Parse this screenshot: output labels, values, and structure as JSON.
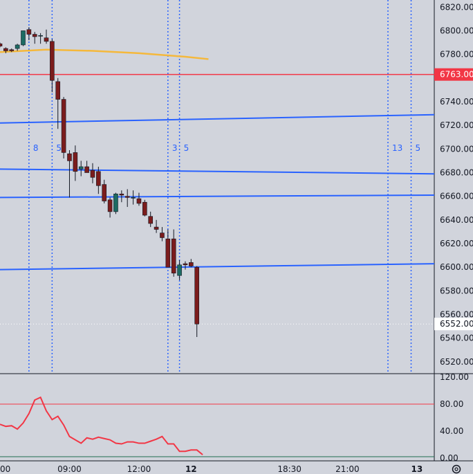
{
  "chart_data": {
    "type": "candlestick",
    "price_axis": {
      "ylim": [
        6510,
        6826
      ],
      "ticks": [
        6820,
        6800,
        6780,
        6740,
        6720,
        6700,
        6680,
        6660,
        6640,
        6620,
        6600,
        6580,
        6560,
        6540,
        6520
      ],
      "tick_labels": [
        "6820.00",
        "6800.00",
        "6780.00",
        "6740.00",
        "6720.00",
        "6700.00",
        "6680.00",
        "6660.00",
        "6640.00",
        "6620.00",
        "6600.00",
        "6580.00",
        "6560.00",
        "6540.00",
        "6520.00"
      ]
    },
    "time_axis": {
      "range": [
        6.0,
        24.75
      ],
      "ticks": [
        {
          "t": 6.0,
          "label": "00"
        },
        {
          "t": 9.0,
          "label": "09:00"
        },
        {
          "t": 12.0,
          "label": "12:00"
        },
        {
          "t": 14.25,
          "label": "12"
        },
        {
          "t": 18.5,
          "label": "18:30"
        },
        {
          "t": 21.0,
          "label": "21:00"
        },
        {
          "t": 24.0,
          "label": "13"
        }
      ]
    },
    "candles": [
      {
        "t": 6.0,
        "o": 6789,
        "h": 6790,
        "l": 6786,
        "c": 6787
      },
      {
        "t": 6.25,
        "o": 6785,
        "h": 6786,
        "l": 6781,
        "c": 6783
      },
      {
        "t": 6.5,
        "o": 6784,
        "h": 6785,
        "l": 6782,
        "c": 6783
      },
      {
        "t": 6.75,
        "o": 6785,
        "h": 6789,
        "l": 6783,
        "c": 6788
      },
      {
        "t": 7.0,
        "o": 6788,
        "h": 6800,
        "l": 6787,
        "c": 6800
      },
      {
        "t": 7.25,
        "o": 6801,
        "h": 6803,
        "l": 6792,
        "c": 6797
      },
      {
        "t": 7.5,
        "o": 6797,
        "h": 6799,
        "l": 6789,
        "c": 6795
      },
      {
        "t": 7.75,
        "o": 6796,
        "h": 6798,
        "l": 6789,
        "c": 6796
      },
      {
        "t": 8.0,
        "o": 6794,
        "h": 6801,
        "l": 6789,
        "c": 6791
      },
      {
        "t": 8.25,
        "o": 6791,
        "h": 6793,
        "l": 6748,
        "c": 6758
      },
      {
        "t": 8.5,
        "o": 6757,
        "h": 6760,
        "l": 6717,
        "c": 6742
      },
      {
        "t": 8.75,
        "o": 6742,
        "h": 6744,
        "l": 6692,
        "c": 6697
      },
      {
        "t": 9.0,
        "o": 6696,
        "h": 6699,
        "l": 6659,
        "c": 6690
      },
      {
        "t": 9.25,
        "o": 6697,
        "h": 6703,
        "l": 6673,
        "c": 6681
      },
      {
        "t": 9.5,
        "o": 6683,
        "h": 6690,
        "l": 6677,
        "c": 6685
      },
      {
        "t": 9.75,
        "o": 6685,
        "h": 6690,
        "l": 6680,
        "c": 6680
      },
      {
        "t": 10.0,
        "o": 6682,
        "h": 6688,
        "l": 6671,
        "c": 6676
      },
      {
        "t": 10.25,
        "o": 6681,
        "h": 6685,
        "l": 6662,
        "c": 6669
      },
      {
        "t": 10.5,
        "o": 6670,
        "h": 6674,
        "l": 6654,
        "c": 6656
      },
      {
        "t": 10.75,
        "o": 6657,
        "h": 6659,
        "l": 6642,
        "c": 6647
      },
      {
        "t": 11.0,
        "o": 6647,
        "h": 6663,
        "l": 6645,
        "c": 6662
      },
      {
        "t": 11.25,
        "o": 6662,
        "h": 6665,
        "l": 6655,
        "c": 6661
      },
      {
        "t": 11.5,
        "o": 6660,
        "h": 6666,
        "l": 6651,
        "c": 6659
      },
      {
        "t": 11.75,
        "o": 6659,
        "h": 6665,
        "l": 6653,
        "c": 6659
      },
      {
        "t": 12.0,
        "o": 6658,
        "h": 6663,
        "l": 6652,
        "c": 6654
      },
      {
        "t": 12.25,
        "o": 6655,
        "h": 6657,
        "l": 6643,
        "c": 6644
      },
      {
        "t": 12.5,
        "o": 6643,
        "h": 6647,
        "l": 6634,
        "c": 6637
      },
      {
        "t": 12.75,
        "o": 6634,
        "h": 6640,
        "l": 6629,
        "c": 6632
      },
      {
        "t": 13.0,
        "o": 6629,
        "h": 6634,
        "l": 6622,
        "c": 6625
      },
      {
        "t": 13.25,
        "o": 6624,
        "h": 6632,
        "l": 6600,
        "c": 6600
      },
      {
        "t": 13.5,
        "o": 6624,
        "h": 6632,
        "l": 6592,
        "c": 6595
      },
      {
        "t": 13.75,
        "o": 6593,
        "h": 6606,
        "l": 6589,
        "c": 6602
      },
      {
        "t": 14.0,
        "o": 6603,
        "h": 6605,
        "l": 6598,
        "c": 6602
      },
      {
        "t": 14.25,
        "o": 6604,
        "h": 6607,
        "l": 6600,
        "c": 6601
      },
      {
        "t": 14.5,
        "o": 6600,
        "h": 6601,
        "l": 6541,
        "c": 6552
      }
    ],
    "ema": [
      {
        "t": 6.0,
        "v": 6782
      },
      {
        "t": 8.0,
        "v": 6784
      },
      {
        "t": 10.0,
        "v": 6783
      },
      {
        "t": 12.0,
        "v": 6781
      },
      {
        "t": 14.0,
        "v": 6778
      },
      {
        "t": 15.0,
        "v": 6776
      }
    ],
    "trendlines": [
      {
        "t1": 6.0,
        "v1": 6722,
        "t2": 24.75,
        "v2": 6729
      },
      {
        "t1": 6.0,
        "v1": 6683,
        "t2": 24.75,
        "v2": 6679
      },
      {
        "t1": 6.0,
        "v1": 6659,
        "t2": 24.75,
        "v2": 6661
      },
      {
        "t1": 6.0,
        "v1": 6598,
        "t2": 24.75,
        "v2": 6603
      }
    ],
    "horizontal_level": {
      "value": 6763,
      "label": "6763.00"
    },
    "last_price": {
      "value": 6552,
      "label": "6552.00"
    },
    "cycle_lines": [
      {
        "t": 7.25,
        "label": "8"
      },
      {
        "t": 8.25,
        "label": "5"
      },
      {
        "t": 13.25,
        "label": "3"
      },
      {
        "t": 13.75,
        "label": "5"
      },
      {
        "t": 22.75,
        "label": "13"
      },
      {
        "t": 23.75,
        "label": "5"
      }
    ],
    "oscillator": {
      "ylim": [
        0,
        120
      ],
      "ticks": [
        120,
        80,
        40,
        0
      ],
      "tick_labels": [
        "120.00",
        "80.00",
        "40.00",
        "0.00"
      ],
      "upper_level": 80,
      "lower_level": 2,
      "values": [
        {
          "t": 6.0,
          "v": 50
        },
        {
          "t": 6.25,
          "v": 47
        },
        {
          "t": 6.5,
          "v": 48
        },
        {
          "t": 6.75,
          "v": 43
        },
        {
          "t": 7.0,
          "v": 52
        },
        {
          "t": 7.25,
          "v": 66
        },
        {
          "t": 7.5,
          "v": 86
        },
        {
          "t": 7.75,
          "v": 90
        },
        {
          "t": 8.0,
          "v": 70
        },
        {
          "t": 8.25,
          "v": 57
        },
        {
          "t": 8.5,
          "v": 62
        },
        {
          "t": 8.75,
          "v": 49
        },
        {
          "t": 9.0,
          "v": 32
        },
        {
          "t": 9.25,
          "v": 27
        },
        {
          "t": 9.5,
          "v": 22
        },
        {
          "t": 9.75,
          "v": 30
        },
        {
          "t": 10.0,
          "v": 28
        },
        {
          "t": 10.25,
          "v": 31
        },
        {
          "t": 10.5,
          "v": 29
        },
        {
          "t": 10.75,
          "v": 27
        },
        {
          "t": 11.0,
          "v": 22
        },
        {
          "t": 11.25,
          "v": 21
        },
        {
          "t": 11.5,
          "v": 24
        },
        {
          "t": 11.75,
          "v": 24
        },
        {
          "t": 12.0,
          "v": 22
        },
        {
          "t": 12.25,
          "v": 22
        },
        {
          "t": 12.5,
          "v": 25
        },
        {
          "t": 12.75,
          "v": 28
        },
        {
          "t": 13.0,
          "v": 32
        },
        {
          "t": 13.25,
          "v": 21
        },
        {
          "t": 13.5,
          "v": 21
        },
        {
          "t": 13.75,
          "v": 10
        },
        {
          "t": 14.0,
          "v": 10
        },
        {
          "t": 14.25,
          "v": 12
        },
        {
          "t": 14.5,
          "v": 12
        },
        {
          "t": 14.75,
          "v": 5
        }
      ]
    },
    "settings_icon": "gear-icon"
  },
  "colors": {
    "background": "#d1d4dc",
    "bull_body": "#1d6b63",
    "bear_body": "#7b1c1c",
    "wick": "#131722",
    "trendline": "#2962ff",
    "cycle_line": "#2962ff",
    "ema": "#f5b83b",
    "level_line": "#f23645",
    "level_badge": "#f23645",
    "last_price_badge": "#ffffff",
    "oscillator_line": "#f23645",
    "osc_upper": "#f23645",
    "osc_lower": "#1d6b4e",
    "axis_text": "#131722"
  }
}
